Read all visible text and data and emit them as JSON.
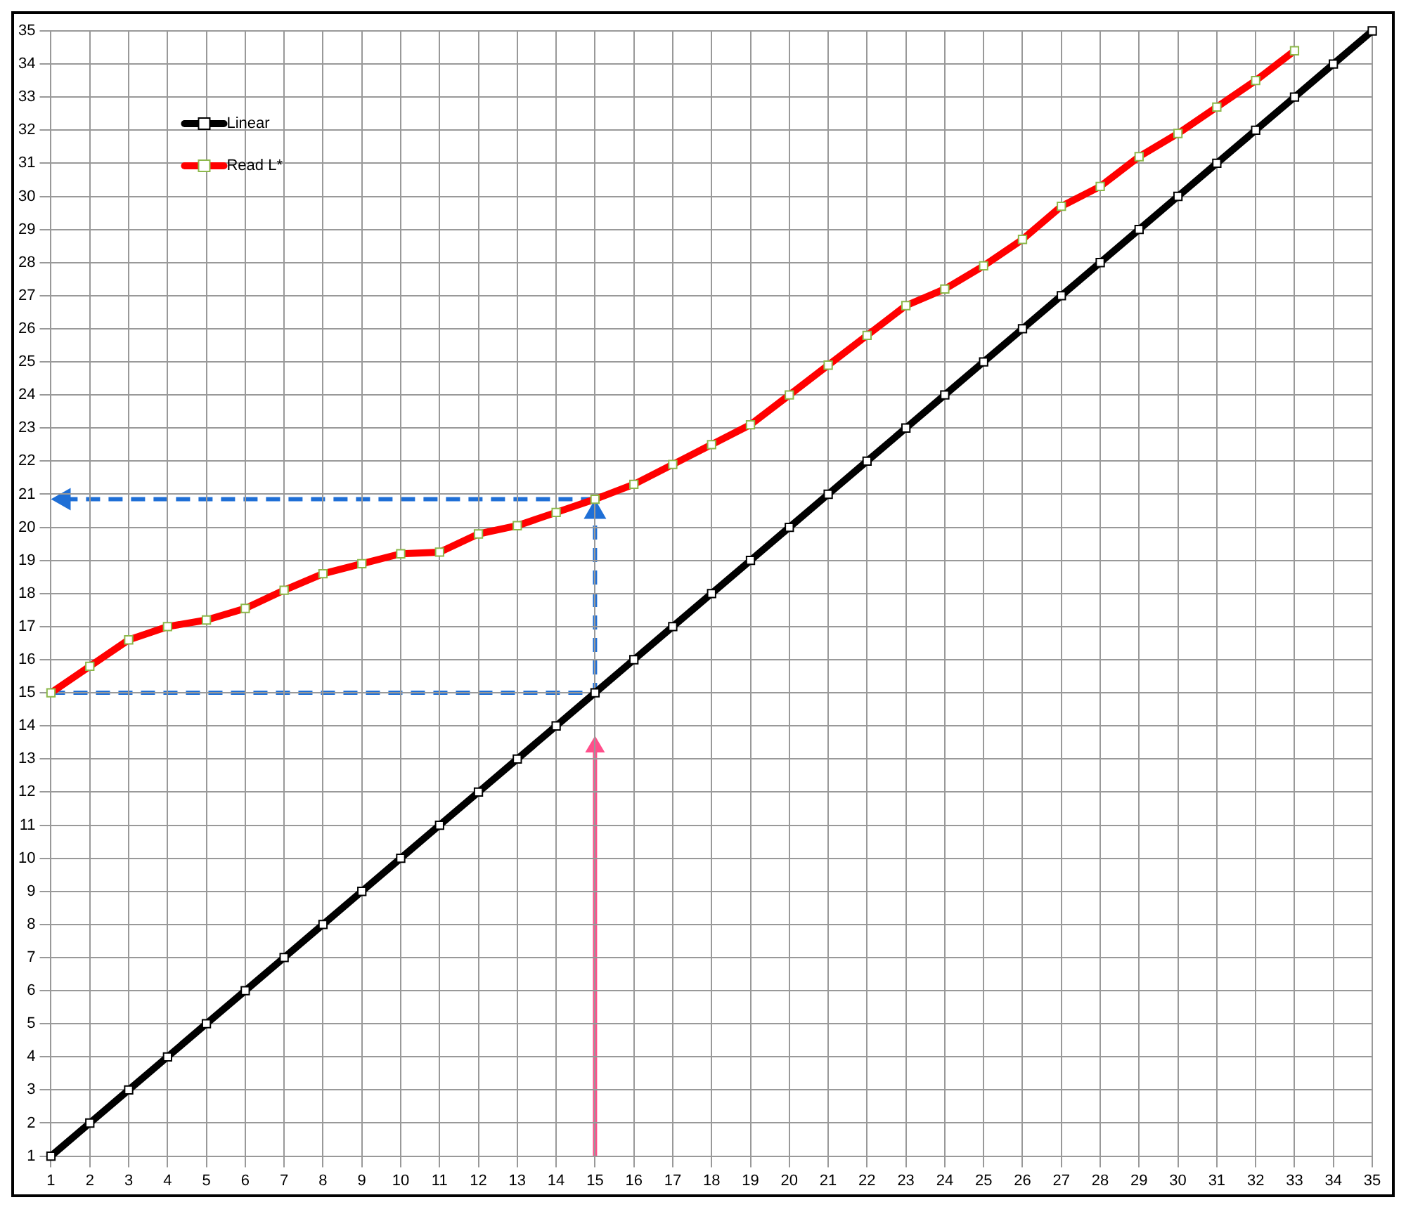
{
  "chart_data": {
    "type": "line",
    "x": [
      1,
      2,
      3,
      4,
      5,
      6,
      7,
      8,
      9,
      10,
      11,
      12,
      13,
      14,
      15,
      16,
      17,
      18,
      19,
      20,
      21,
      22,
      23,
      24,
      25,
      26,
      27,
      28,
      29,
      30,
      31,
      32,
      33,
      34,
      35
    ],
    "series": [
      {
        "name": "Linear",
        "color": "#000000",
        "values": [
          1,
          2,
          3,
          4,
          5,
          6,
          7,
          8,
          9,
          10,
          11,
          12,
          13,
          14,
          15,
          16,
          17,
          18,
          19,
          20,
          21,
          22,
          23,
          24,
          25,
          26,
          27,
          28,
          29,
          30,
          31,
          32,
          33,
          34,
          35
        ]
      },
      {
        "name": "Read L*",
        "color": "#ff0000",
        "values": [
          15,
          15.8,
          16.6,
          17,
          17.2,
          17.55,
          18.1,
          18.6,
          18.9,
          19.2,
          19.25,
          19.8,
          20.05,
          20.45,
          20.85,
          21.3,
          21.9,
          22.5,
          23.1,
          24,
          24.9,
          25.8,
          26.7,
          27.2,
          27.9,
          28.7,
          29.7,
          30.3,
          31.2,
          31.9,
          32.7,
          33.5,
          34.4,
          null,
          null
        ]
      }
    ],
    "xlim": [
      1,
      35
    ],
    "xticks": [
      1,
      2,
      3,
      4,
      5,
      6,
      7,
      8,
      9,
      10,
      11,
      12,
      13,
      14,
      15,
      16,
      17,
      18,
      19,
      20,
      21,
      22,
      23,
      24,
      25,
      26,
      27,
      28,
      29,
      30,
      31,
      32,
      33,
      34,
      35
    ],
    "ylim": [
      1,
      35
    ],
    "yticks": [
      1,
      2,
      3,
      4,
      5,
      6,
      7,
      8,
      9,
      10,
      11,
      12,
      13,
      14,
      15,
      16,
      17,
      18,
      19,
      20,
      21,
      22,
      23,
      24,
      25,
      26,
      27,
      28,
      29,
      30,
      31,
      32,
      33,
      34,
      35
    ],
    "grid": true,
    "legend": "top left",
    "marker": "square",
    "line_style": "solid"
  }
}
